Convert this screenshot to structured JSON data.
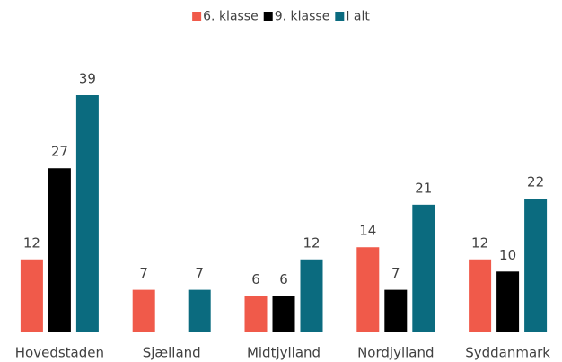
{
  "chart_data": {
    "type": "bar",
    "categories": [
      "Hovedstaden",
      "Sjælland",
      "Midtjylland",
      "Nordjylland",
      "Syddanmark"
    ],
    "series": [
      {
        "name": "6. klasse",
        "color": "#f05a4a",
        "values": [
          12,
          7,
          6,
          14,
          12
        ]
      },
      {
        "name": "9. klasse",
        "color": "#000000",
        "values": [
          27,
          null,
          6,
          7,
          10
        ]
      },
      {
        "name": "I alt",
        "color": "#0b6b7f",
        "values": [
          39,
          7,
          12,
          21,
          22
        ]
      }
    ],
    "legend": "top"
  }
}
